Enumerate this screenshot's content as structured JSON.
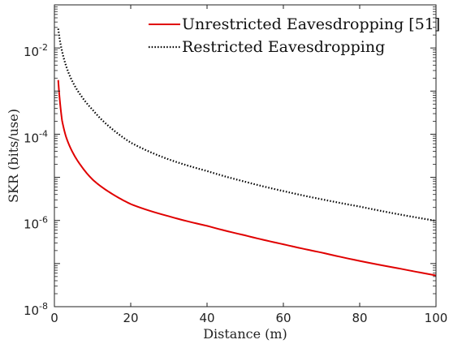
{
  "chart_data": {
    "type": "line",
    "xlabel": "Distance (m)",
    "ylabel": "SKR (bits/use)",
    "xlim": [
      0,
      100
    ],
    "ylim": [
      1e-08,
      0.1
    ],
    "yscale": "log",
    "grid": false,
    "legend_position": "top-right",
    "x_ticks": [
      0,
      20,
      40,
      60,
      80,
      100
    ],
    "x_tick_labels": [
      "0",
      "20",
      "40",
      "60",
      "80",
      "100"
    ],
    "y_ticks": [
      1e-08,
      1e-06,
      0.0001,
      0.01
    ],
    "y_tick_labels": [
      {
        "base": "10",
        "exp": "-8"
      },
      {
        "base": "10",
        "exp": "-6"
      },
      {
        "base": "10",
        "exp": "-4"
      },
      {
        "base": "10",
        "exp": "-2"
      }
    ],
    "series": [
      {
        "name": "Unrestricted Eavesdropping [51]",
        "color": "#e00000",
        "style": "solid",
        "x": [
          1,
          2,
          3,
          5,
          7,
          10,
          15,
          20,
          30,
          40,
          50,
          60,
          70,
          80,
          90,
          100
        ],
        "y": [
          0.0018,
          0.00021,
          9e-05,
          3.5e-05,
          1.85e-05,
          8.9e-06,
          4.2e-06,
          2.4e-06,
          1.25e-06,
          7.5e-07,
          4.5e-07,
          2.8e-07,
          1.8e-07,
          1.15e-07,
          7.8e-08,
          5.3e-08
        ]
      },
      {
        "name": "Restricted Eavesdropping",
        "color": "#000000",
        "style": "dotted",
        "x": [
          1,
          2,
          3,
          5,
          7,
          10,
          15,
          20,
          30,
          40,
          50,
          60,
          70,
          80,
          90,
          100
        ],
        "y": [
          0.028,
          0.0085,
          0.004,
          0.0015,
          0.00078,
          0.00037,
          0.000135,
          6.4e-05,
          2.6e-05,
          1.4e-05,
          7.9e-06,
          4.8e-06,
          3.1e-06,
          2.1e-06,
          1.4e-06,
          9.8e-07
        ]
      }
    ]
  }
}
